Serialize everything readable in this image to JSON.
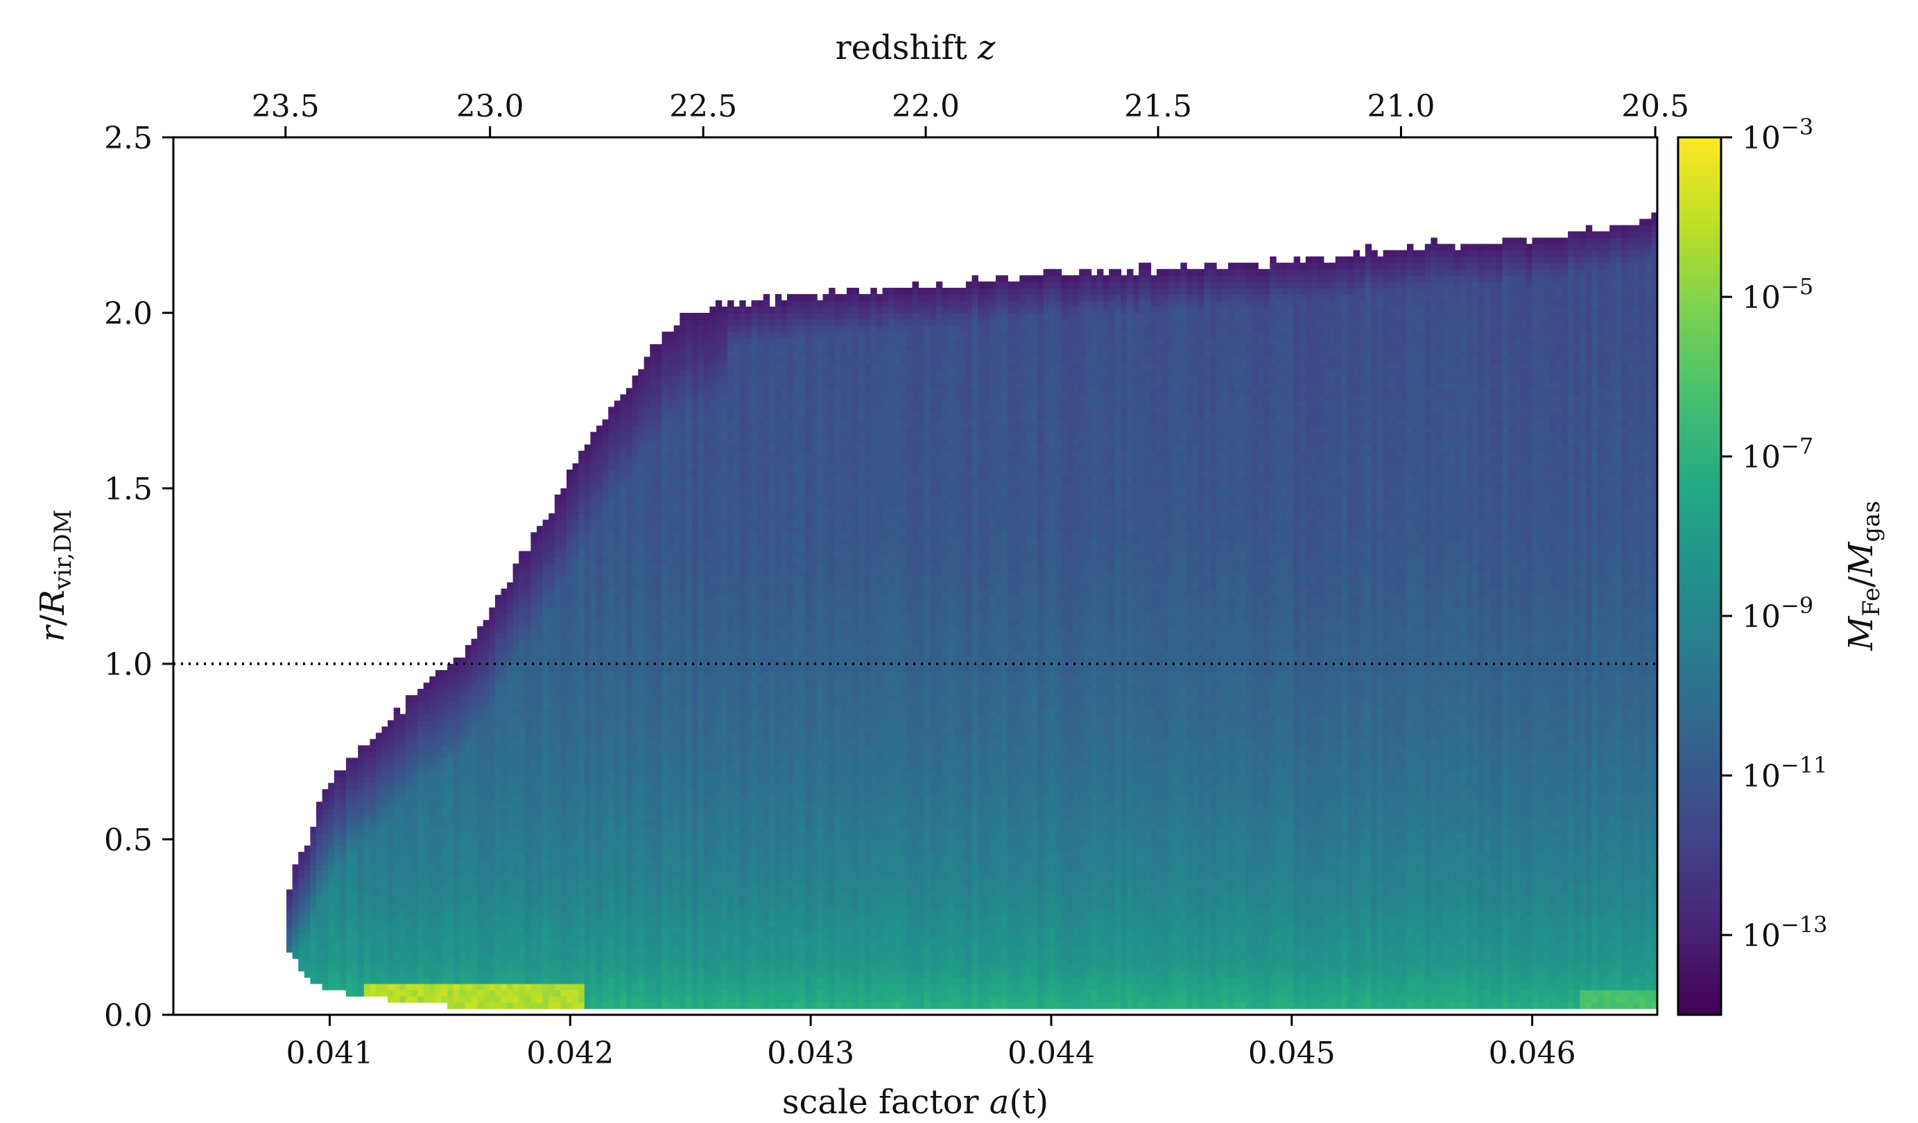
{
  "chart_data": {
    "type": "heatmap",
    "x": {
      "label_prefix": "scale factor ",
      "label_var": "a",
      "label_paren": "(t)",
      "range": [
        0.04035,
        0.04652
      ],
      "ticks": [
        0.041,
        0.042,
        0.043,
        0.044,
        0.045,
        0.046
      ],
      "tick_labels": [
        "0.041",
        "0.042",
        "0.043",
        "0.044",
        "0.045",
        "0.046"
      ]
    },
    "x_top": {
      "label_prefix": "redshift ",
      "label_var": "z",
      "ticks": [
        23.5,
        23.0,
        22.5,
        22.0,
        21.5,
        21.0,
        20.5
      ],
      "tick_labels": [
        "23.5",
        "23.0",
        "22.5",
        "22.0",
        "21.5",
        "21.0",
        "20.5"
      ]
    },
    "y": {
      "label_var": "r",
      "label_slash": "/",
      "label_R": "R",
      "label_sub": "vir,DM",
      "range": [
        0.0,
        2.5
      ],
      "ticks": [
        0.0,
        0.5,
        1.0,
        1.5,
        2.0,
        2.5
      ],
      "tick_labels": [
        "0.0",
        "0.5",
        "1.0",
        "1.5",
        "2.0",
        "2.5"
      ]
    },
    "reference_line": {
      "y": 1.0,
      "style": "dotted",
      "color": "#000000"
    },
    "colorbar": {
      "scale": "log",
      "range": [
        -14,
        -3
      ],
      "ticks": [
        -3,
        -5,
        -7,
        -9,
        -11,
        -13
      ],
      "tick_base": "10",
      "tick_exponents": [
        "−3",
        "−5",
        "−7",
        "−9",
        "−11",
        "−13"
      ],
      "label_M1": "M",
      "label_sub1": "Fe",
      "label_slash": "/",
      "label_M2": "M",
      "label_sub2": "gas",
      "colormap": "viridis"
    },
    "upper_envelope": [
      [
        0.04082,
        0.36
      ],
      [
        0.0409,
        0.48
      ],
      [
        0.04097,
        0.63
      ],
      [
        0.04105,
        0.7
      ],
      [
        0.04113,
        0.75
      ],
      [
        0.0412,
        0.81
      ],
      [
        0.04128,
        0.86
      ],
      [
        0.04135,
        0.91
      ],
      [
        0.04143,
        0.96
      ],
      [
        0.04151,
        1.0
      ],
      [
        0.0416,
        1.08
      ],
      [
        0.0417,
        1.2
      ],
      [
        0.0418,
        1.31
      ],
      [
        0.04192,
        1.44
      ],
      [
        0.04203,
        1.58
      ],
      [
        0.04215,
        1.7
      ],
      [
        0.04227,
        1.83
      ],
      [
        0.04238,
        1.93
      ],
      [
        0.04248,
        1.99
      ],
      [
        0.0426,
        2.02
      ],
      [
        0.043,
        2.05
      ],
      [
        0.0435,
        2.08
      ],
      [
        0.044,
        2.11
      ],
      [
        0.0445,
        2.13
      ],
      [
        0.045,
        2.15
      ],
      [
        0.0455,
        2.19
      ],
      [
        0.046,
        2.21
      ],
      [
        0.0463,
        2.25
      ],
      [
        0.04652,
        2.28
      ]
    ],
    "lower_envelope": [
      [
        0.04082,
        0.2
      ],
      [
        0.0409,
        0.11
      ],
      [
        0.041,
        0.07
      ],
      [
        0.04115,
        0.05
      ],
      [
        0.0413,
        0.04
      ],
      [
        0.0416,
        0.02
      ],
      [
        0.042,
        0.01
      ],
      [
        0.04652,
        0.01
      ]
    ],
    "color_field": {
      "description_points": [
        {
          "r": 0.0,
          "logZ_mid": -7.0
        },
        {
          "r": 0.15,
          "logZ_mid": -8.3
        },
        {
          "r": 0.4,
          "logZ_mid": -9.3
        },
        {
          "r": 0.8,
          "logZ_mid": -10.3
        },
        {
          "r": 1.4,
          "logZ_mid": -11.1
        },
        {
          "r": 2.3,
          "logZ_mid": -11.6
        }
      ],
      "bright_core": {
        "a_range": [
          0.04115,
          0.04205
        ],
        "r_max": 0.09,
        "logZ": -4.3
      },
      "dark_edge_logZ": -13.6
    }
  }
}
